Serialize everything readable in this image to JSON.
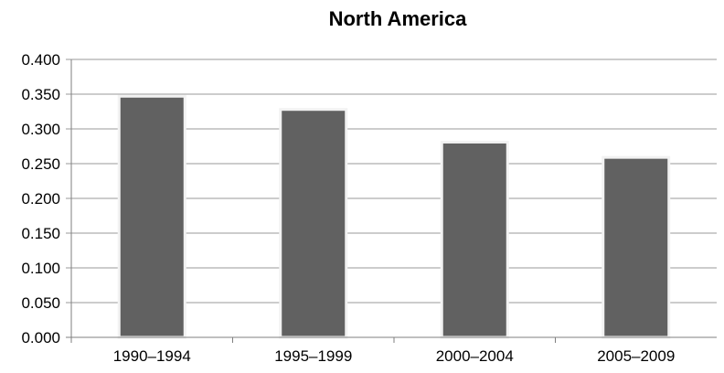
{
  "chart_data": {
    "type": "bar",
    "title": "North America",
    "xlabel": "",
    "ylabel": "",
    "categories": [
      "1990–1994",
      "1995–1999",
      "2000–2004",
      "2005–2009"
    ],
    "values": [
      0.347,
      0.328,
      0.281,
      0.259
    ],
    "ylim": [
      0,
      0.4
    ],
    "yticks": [
      "0.000",
      "0.050",
      "0.100",
      "0.150",
      "0.200",
      "0.250",
      "0.300",
      "0.350",
      "0.400"
    ],
    "grid": true,
    "legend": "none",
    "colors": {
      "bar": "#616161",
      "bar_edge": "#f2f2f2",
      "grid": "#9a9a9a",
      "axis": "#7f7f7f"
    }
  }
}
